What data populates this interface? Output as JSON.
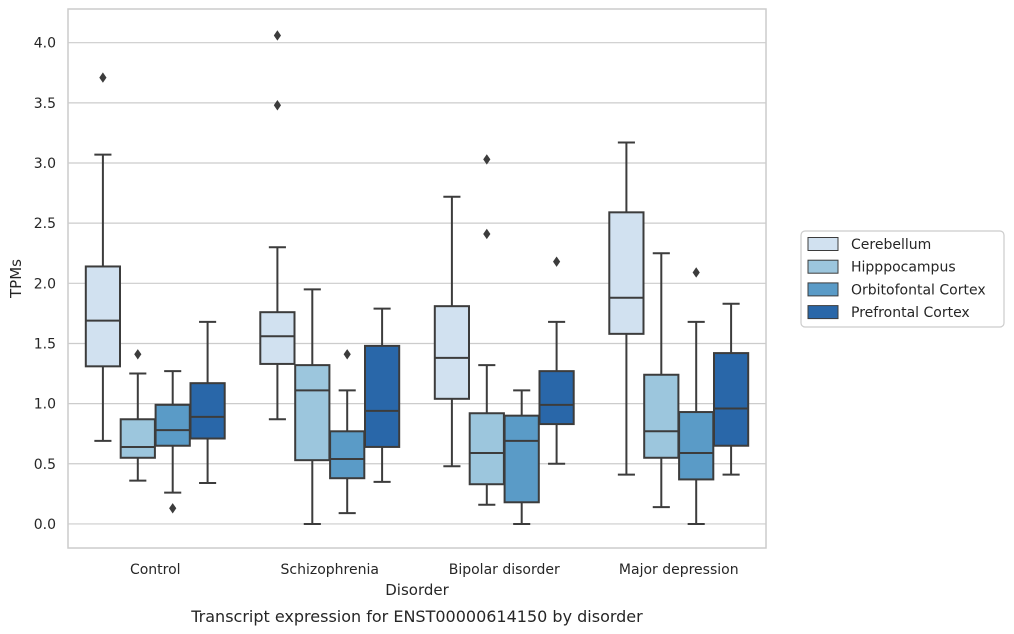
{
  "caption": "Transcript expression for ENST00000614150 by disorder",
  "chart_data": {
    "type": "box",
    "xlabel": "Disorder",
    "ylabel": "TPMs",
    "ylim": [
      -0.2,
      4.28
    ],
    "yticks": [
      "0.0",
      "0.5",
      "1.0",
      "1.5",
      "2.0",
      "2.5",
      "3.0",
      "3.5",
      "4.0"
    ],
    "grid": "horizontal",
    "legend_position": "right",
    "categories": [
      "Control",
      "Schizophrenia",
      "Bipolar disorder",
      "Major depression"
    ],
    "series": [
      {
        "name": "Cerebellum",
        "color": "#d1e1f0",
        "boxes": [
          {
            "whisker_low": 0.69,
            "q1": 1.31,
            "median": 1.69,
            "q3": 2.14,
            "whisker_high": 3.07,
            "outliers": [
              3.71
            ]
          },
          {
            "whisker_low": 0.87,
            "q1": 1.33,
            "median": 1.56,
            "q3": 1.76,
            "whisker_high": 2.3,
            "outliers": [
              4.06,
              3.48
            ]
          },
          {
            "whisker_low": 0.48,
            "q1": 1.04,
            "median": 1.38,
            "q3": 1.81,
            "whisker_high": 2.72,
            "outliers": []
          },
          {
            "whisker_low": 0.41,
            "q1": 1.58,
            "median": 1.88,
            "q3": 2.59,
            "whisker_high": 3.17,
            "outliers": []
          }
        ]
      },
      {
        "name": "Hipppocampus",
        "color": "#9cc6dd",
        "boxes": [
          {
            "whisker_low": 0.36,
            "q1": 0.55,
            "median": 0.64,
            "q3": 0.87,
            "whisker_high": 1.25,
            "outliers": [
              1.41
            ]
          },
          {
            "whisker_low": 0.0,
            "q1": 0.53,
            "median": 1.11,
            "q3": 1.32,
            "whisker_high": 1.95,
            "outliers": []
          },
          {
            "whisker_low": 0.16,
            "q1": 0.33,
            "median": 0.59,
            "q3": 0.92,
            "whisker_high": 1.32,
            "outliers": [
              3.03,
              2.41
            ]
          },
          {
            "whisker_low": 0.14,
            "q1": 0.55,
            "median": 0.77,
            "q3": 1.24,
            "whisker_high": 2.25,
            "outliers": []
          }
        ]
      },
      {
        "name": "Orbitofontal Cortex",
        "color": "#5a9bc7",
        "boxes": [
          {
            "whisker_low": 0.26,
            "q1": 0.65,
            "median": 0.78,
            "q3": 0.99,
            "whisker_high": 1.27,
            "outliers": [
              0.13
            ]
          },
          {
            "whisker_low": 0.09,
            "q1": 0.38,
            "median": 0.54,
            "q3": 0.77,
            "whisker_high": 1.11,
            "outliers": [
              1.41
            ]
          },
          {
            "whisker_low": 0.0,
            "q1": 0.18,
            "median": 0.69,
            "q3": 0.9,
            "whisker_high": 1.11,
            "outliers": []
          },
          {
            "whisker_low": 0.0,
            "q1": 0.37,
            "median": 0.59,
            "q3": 0.93,
            "whisker_high": 1.68,
            "outliers": [
              2.09
            ]
          }
        ]
      },
      {
        "name": "Prefrontal Cortex",
        "color": "#2967a9",
        "boxes": [
          {
            "whisker_low": 0.34,
            "q1": 0.71,
            "median": 0.89,
            "q3": 1.17,
            "whisker_high": 1.68,
            "outliers": []
          },
          {
            "whisker_low": 0.35,
            "q1": 0.64,
            "median": 0.94,
            "q3": 1.48,
            "whisker_high": 1.79,
            "outliers": []
          },
          {
            "whisker_low": 0.5,
            "q1": 0.83,
            "median": 0.99,
            "q3": 1.27,
            "whisker_high": 1.68,
            "outliers": [
              2.18
            ]
          },
          {
            "whisker_low": 0.41,
            "q1": 0.65,
            "median": 0.96,
            "q3": 1.42,
            "whisker_high": 1.83,
            "outliers": []
          }
        ]
      }
    ]
  }
}
